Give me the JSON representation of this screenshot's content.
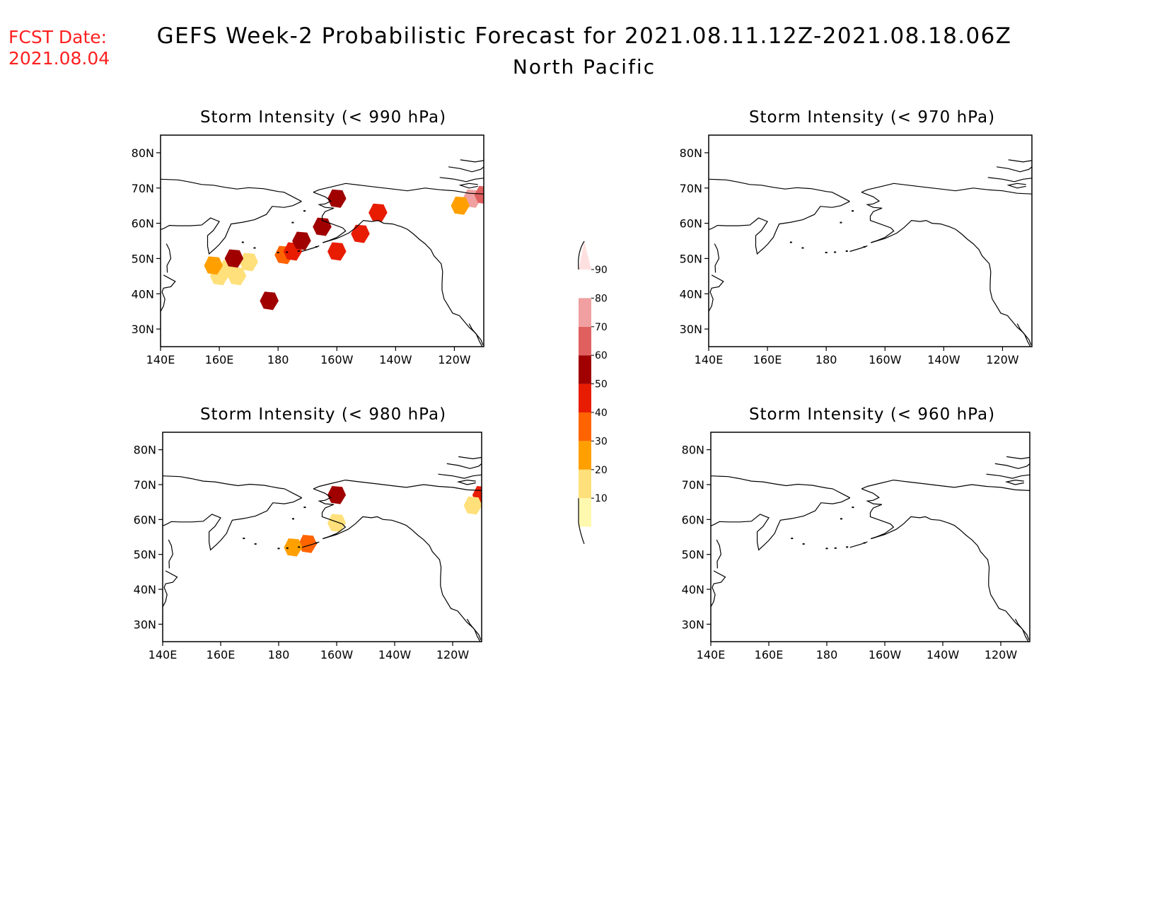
{
  "fcst_date": {
    "label": "FCST Date:",
    "value": "2021.08.04",
    "color": "#ff2020"
  },
  "title": {
    "line1": "GEFS Week-2 Probabilistic Forecast for 2021.08.11.12Z-2021.08.18.06Z",
    "line2": "North Pacific"
  },
  "panels": [
    {
      "title": "Storm Intensity (< 990 hPa)"
    },
    {
      "title": "Storm Intensity (< 970 hPa)"
    },
    {
      "title": "Storm Intensity (< 980 hPa)"
    },
    {
      "title": "Storm Intensity (< 960 hPa)"
    }
  ],
  "axes": {
    "lat_labels": [
      "80N",
      "70N",
      "60N",
      "50N",
      "40N",
      "30N"
    ],
    "lon_labels": [
      "140E",
      "160E",
      "180",
      "160W",
      "140W",
      "120W"
    ]
  },
  "colorbar": {
    "levels": [
      "10",
      "20",
      "30",
      "40",
      "50",
      "60",
      "70",
      "80",
      "90"
    ],
    "colors": [
      "#fff9b0",
      "#ffe07a",
      "#ffa000",
      "#ff6400",
      "#e81c00",
      "#a00000",
      "#e06060",
      "#f0a0a0",
      "#ffe0e0"
    ]
  },
  "probability_patches": {
    "panel_990": [
      {
        "lon": 163,
        "lat": 47,
        "cls": 1
      },
      {
        "lon": 160,
        "lat": 45,
        "cls": 1
      },
      {
        "lon": 166,
        "lat": 45,
        "cls": 1
      },
      {
        "lon": 170,
        "lat": 49,
        "cls": 1
      },
      {
        "lon": 158,
        "lat": 48,
        "cls": 2
      },
      {
        "lon": 165,
        "lat": 50,
        "cls": 5
      },
      {
        "lon": 177,
        "lat": 38,
        "cls": 5
      },
      {
        "lon": -178,
        "lat": 51,
        "cls": 3
      },
      {
        "lon": -175,
        "lat": 52,
        "cls": 4
      },
      {
        "lon": -172,
        "lat": 55,
        "cls": 5
      },
      {
        "lon": -165,
        "lat": 59,
        "cls": 5
      },
      {
        "lon": -160,
        "lat": 52,
        "cls": 4
      },
      {
        "lon": -160,
        "lat": 67,
        "cls": 5
      },
      {
        "lon": -152,
        "lat": 57,
        "cls": 4
      },
      {
        "lon": -146,
        "lat": 63,
        "cls": 4
      },
      {
        "lon": -114,
        "lat": 67,
        "cls": 7
      },
      {
        "lon": -110,
        "lat": 68,
        "cls": 6
      },
      {
        "lon": -118,
        "lat": 65,
        "cls": 2
      }
    ],
    "panel_980": [
      {
        "lon": -160,
        "lat": 67,
        "cls": 5
      },
      {
        "lon": -170,
        "lat": 53,
        "cls": 3
      },
      {
        "lon": -175,
        "lat": 52,
        "cls": 2
      },
      {
        "lon": -160,
        "lat": 59,
        "cls": 1
      },
      {
        "lon": -110,
        "lat": 67,
        "cls": 4
      },
      {
        "lon": -113,
        "lat": 64,
        "cls": 1
      }
    ]
  }
}
